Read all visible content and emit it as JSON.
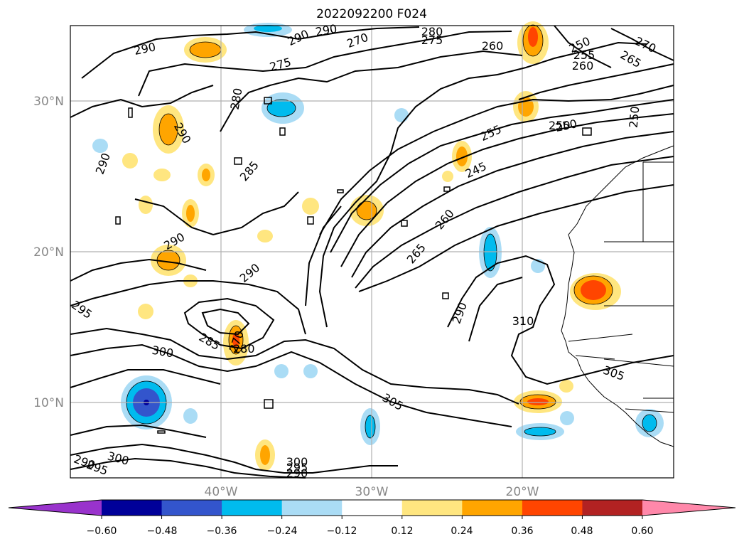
{
  "title": "2022092200 F024",
  "lat_labels": [
    "30°N",
    "20°N",
    "10°N"
  ],
  "lon_labels": [
    "40°W",
    "30°W",
    "20°W"
  ],
  "colorbar": {
    "ticks": [
      "−0.60",
      "−0.48",
      "−0.36",
      "−0.24",
      "−0.12",
      "0.12",
      "0.24",
      "0.36",
      "0.48",
      "0.60"
    ],
    "colors": [
      "#9933cc",
      "#000099",
      "#3355cc",
      "#00bbee",
      "#aadcf5",
      "#ffffff",
      "#ffe680",
      "#ffa500",
      "#ff4500",
      "#b22222",
      "#ff88aa"
    ]
  },
  "contour_labels": [
    "290",
    "275",
    "290",
    "290",
    "270",
    "280",
    "275",
    "260",
    "250",
    "255",
    "260",
    "270",
    "265",
    "280",
    "290",
    "290",
    "285",
    "250",
    "250",
    "255",
    "245",
    "250",
    "290",
    "290",
    "260",
    "265",
    "290",
    "310",
    "295",
    "285",
    "270",
    "280",
    "300",
    "305",
    "305",
    "290",
    "295",
    "300",
    "300",
    "295",
    "290"
  ]
}
